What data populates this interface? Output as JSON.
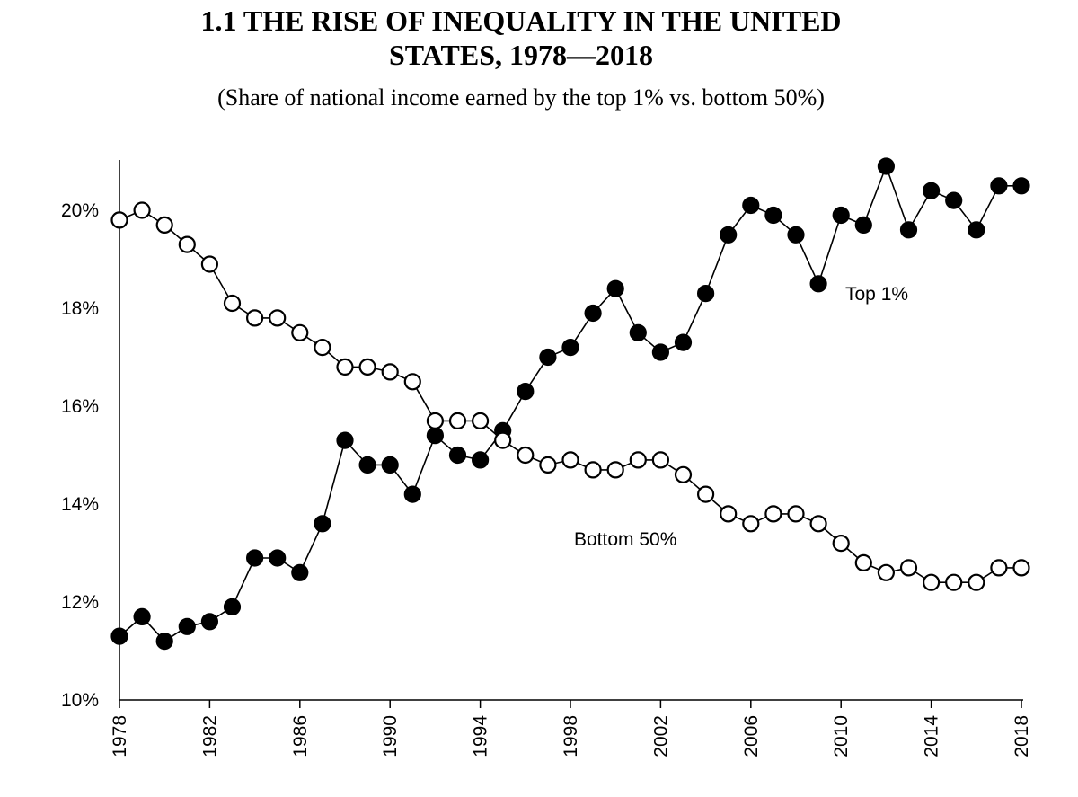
{
  "chart_data": {
    "type": "line",
    "title_line1": "1.1 THE RISE OF INEQUALITY IN THE UNITED",
    "title_line2": "STATES, 1978—2018",
    "subtitle": "(Share of national income earned by the top 1% vs. bottom 50%)",
    "xlabel": "",
    "ylabel": "",
    "xlim": [
      1978,
      2018
    ],
    "ylim": [
      10,
      21
    ],
    "x_ticks": [
      1978,
      1982,
      1986,
      1990,
      1994,
      1998,
      2002,
      2006,
      2010,
      2014,
      2018
    ],
    "y_ticks": [
      {
        "value": 10,
        "label": "10%"
      },
      {
        "value": 12,
        "label": "12%"
      },
      {
        "value": 14,
        "label": "14%"
      },
      {
        "value": 16,
        "label": "16%"
      },
      {
        "value": 18,
        "label": "18%"
      },
      {
        "value": 20,
        "label": "20%"
      }
    ],
    "grid": false,
    "x": [
      1978,
      1979,
      1980,
      1981,
      1982,
      1983,
      1984,
      1985,
      1986,
      1987,
      1988,
      1989,
      1990,
      1991,
      1992,
      1993,
      1994,
      1995,
      1996,
      1997,
      1998,
      1999,
      2000,
      2001,
      2002,
      2003,
      2004,
      2005,
      2006,
      2007,
      2008,
      2009,
      2010,
      2011,
      2012,
      2013,
      2014,
      2015,
      2016,
      2017,
      2018
    ],
    "series": [
      {
        "name": "Top 1%",
        "marker": "filled",
        "annotation": "Top 1%",
        "values": [
          11.3,
          11.7,
          11.2,
          11.5,
          11.6,
          11.9,
          12.9,
          12.9,
          12.6,
          13.6,
          15.3,
          14.8,
          14.8,
          14.2,
          15.4,
          15.0,
          14.9,
          15.5,
          16.3,
          17.0,
          17.2,
          17.9,
          18.4,
          17.5,
          17.1,
          17.3,
          18.3,
          19.5,
          20.1,
          19.9,
          19.5,
          18.5,
          19.9,
          19.7,
          20.9,
          19.6,
          20.4,
          20.2,
          19.6,
          20.5,
          20.5
        ]
      },
      {
        "name": "Bottom 50%",
        "marker": "open",
        "annotation": "Bottom 50%",
        "values": [
          19.8,
          20.0,
          19.7,
          19.3,
          18.9,
          18.1,
          17.8,
          17.8,
          17.5,
          17.2,
          16.8,
          16.8,
          16.7,
          16.5,
          15.7,
          15.7,
          15.7,
          15.3,
          15.0,
          14.8,
          14.9,
          14.7,
          14.7,
          14.9,
          14.9,
          14.6,
          14.2,
          13.8,
          13.6,
          13.8,
          13.8,
          13.6,
          13.2,
          12.8,
          12.6,
          12.7,
          12.4,
          12.4,
          12.4,
          12.7,
          12.7
        ]
      }
    ]
  }
}
